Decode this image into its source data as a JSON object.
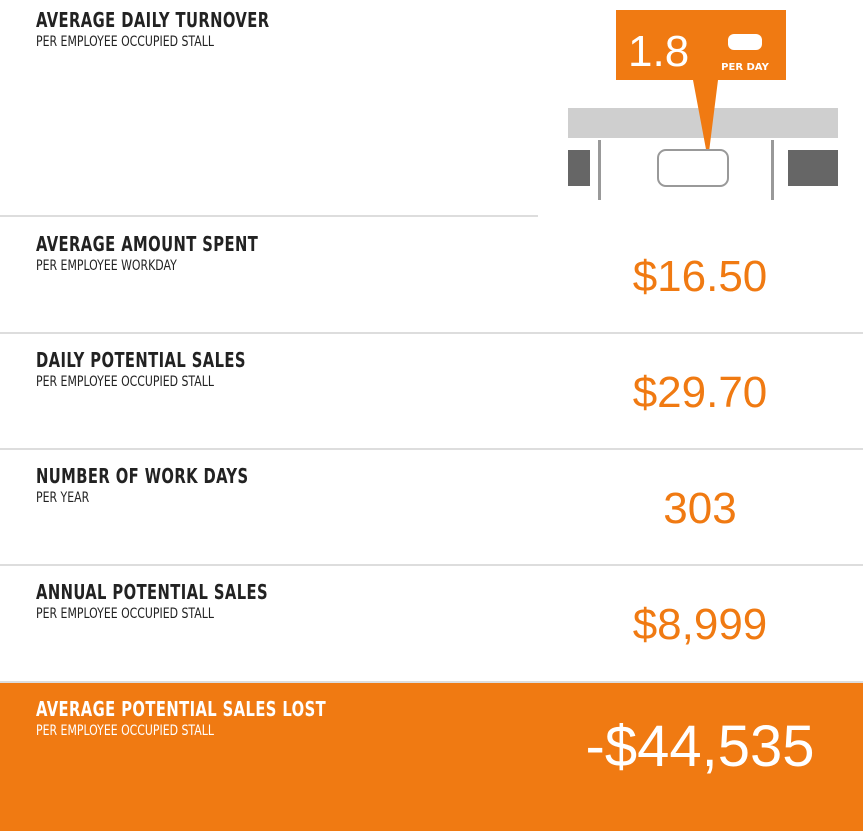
{
  "turnover": {
    "title": "AVERAGE DAILY TURNOVER",
    "subtitle": "PER EMPLOYEE OCCUPIED STALL",
    "value": "1.8",
    "unit": "PER DAY"
  },
  "rows": [
    {
      "title": "AVERAGE AMOUNT SPENT",
      "subtitle": "PER EMPLOYEE WORKDAY",
      "value": "$16.50"
    },
    {
      "title": "DAILY POTENTIAL SALES",
      "subtitle": "PER EMPLOYEE OCCUPIED STALL",
      "value": "$29.70"
    },
    {
      "title": "NUMBER OF WORK DAYS",
      "subtitle": "PER YEAR",
      "value": "303"
    },
    {
      "title": "ANNUAL POTENTIAL SALES",
      "subtitle": "PER EMPLOYEE OCCUPIED STALL",
      "value": "$8,999"
    },
    {
      "title": "AVERAGE POTENTIAL SALES LOST",
      "subtitle": "PER EMPLOYEE OCCUPIED STALL",
      "value": "-$44,535"
    }
  ]
}
